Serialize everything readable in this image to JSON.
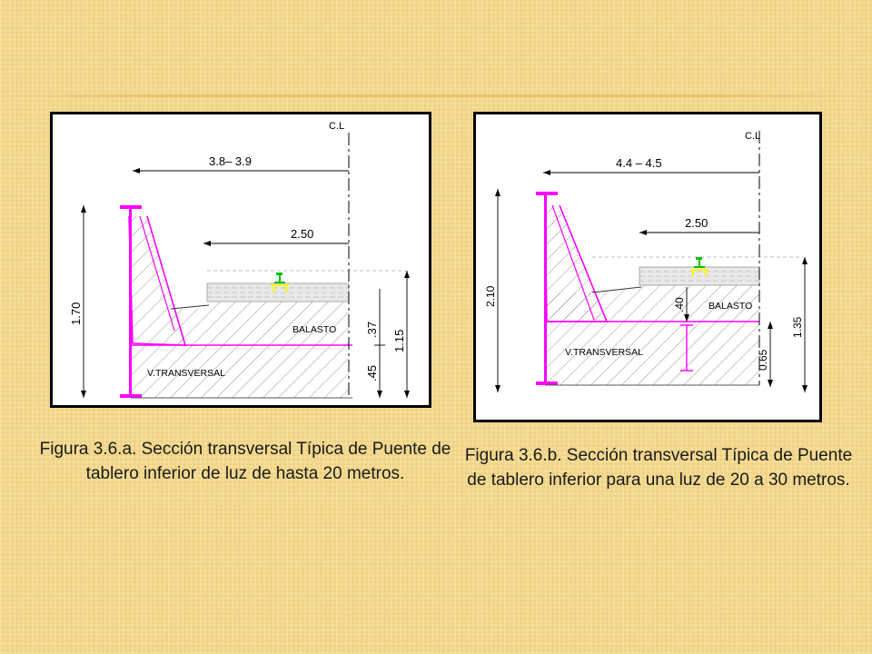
{
  "colors": {
    "background": "#f6dc92",
    "structure": "#ff00ff",
    "rail": "#00c000",
    "rail_base": "#ffff00",
    "hatch": "#7a7a7a"
  },
  "figure_a": {
    "centerline_label": "C.L",
    "dim_width": "3.8– 3.9",
    "dim_track": "2.50",
    "dim_height": "1.70",
    "dim_ballast": ".37",
    "dim_beam": ".45",
    "dim_total": "1.15",
    "label_ballast": "BALASTO",
    "label_beam": "V.TRANSVERSAL"
  },
  "figure_b": {
    "centerline_label": "C.L",
    "dim_width": "4.4  –  4.5",
    "dim_track": "2.50",
    "dim_height": "2.10",
    "dim_ballast": ".40",
    "dim_beam": "0.65",
    "dim_total": "1.35",
    "label_ballast": "BALASTO",
    "label_beam": "V.TRANSVERSAL"
  },
  "captions": {
    "a": "Figura 3.6.a. Sección transversal Típica de Puente de tablero inferior de luz de hasta 20  metros.",
    "b": "Figura 3.6.b. Sección transversal Típica de Puente de tablero inferior para una luz de 20 a 30 metros."
  }
}
